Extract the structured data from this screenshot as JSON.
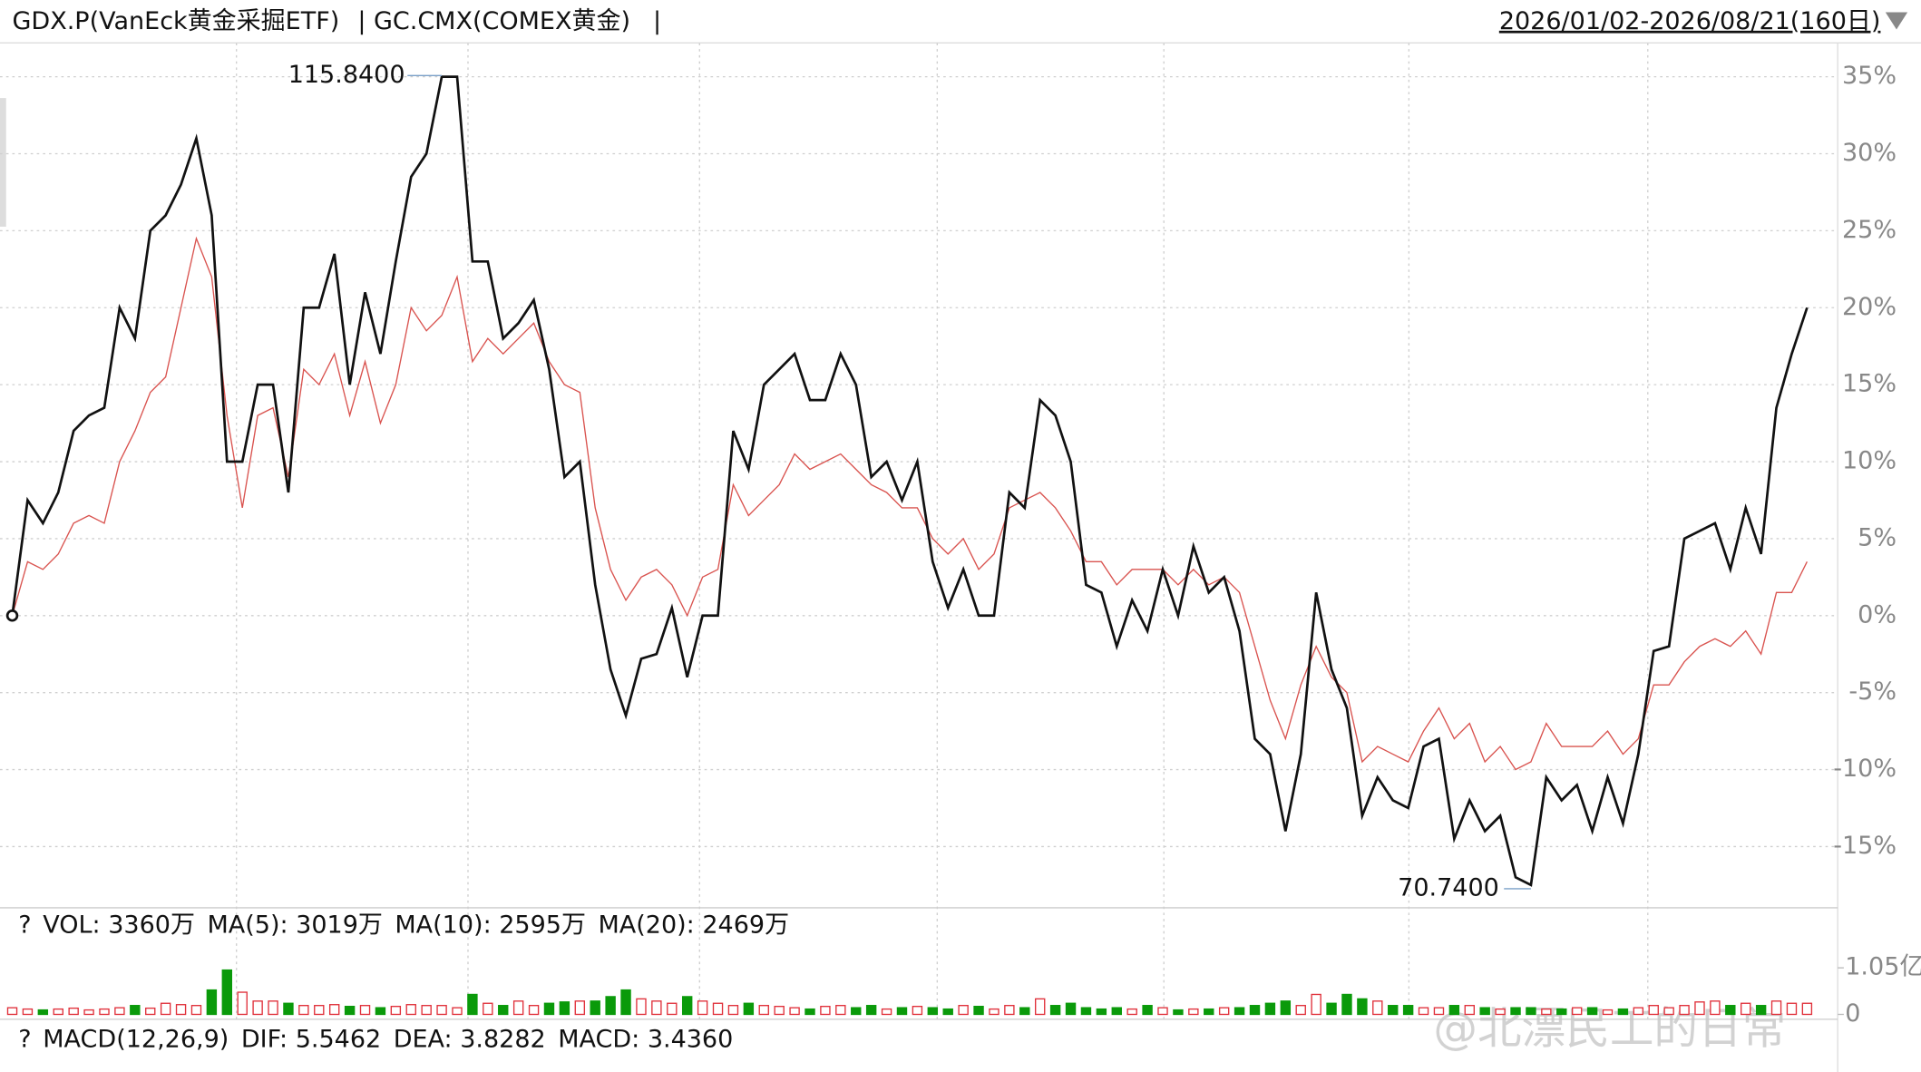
{
  "chart_data": {
    "type": "line",
    "date_range": "2026/01/02-2026/08/21(160日)",
    "separator": "|",
    "series": [
      {
        "name": "GDX.P(VanEck黄金采掘ETF)",
        "color": "#111111",
        "values": [
          0,
          7.5,
          6,
          8,
          12,
          13,
          13.5,
          20,
          18,
          25,
          26,
          28,
          31,
          26,
          10,
          10,
          15,
          15,
          8,
          20,
          20,
          23.5,
          15,
          21,
          17,
          23,
          28.5,
          30,
          35,
          35,
          23,
          23,
          18,
          19,
          20.5,
          16,
          9,
          10,
          2,
          -3.5,
          -6.5,
          -2.8,
          -2.5,
          0.5,
          -4,
          0,
          0,
          12,
          9.5,
          15,
          16,
          17,
          14,
          14,
          17,
          15,
          9,
          10,
          7.5,
          10,
          3.5,
          0.5,
          3,
          0,
          0,
          8,
          7,
          14,
          13,
          10,
          2,
          1.5,
          -2,
          1,
          -1,
          3,
          0,
          4.5,
          1.5,
          2.5,
          -1,
          -8,
          -9,
          -14,
          -9,
          1.5,
          -3.5,
          -6,
          -13,
          -10.5,
          -12,
          -12.5,
          -8.5,
          -8,
          -14.5,
          -12,
          -14,
          -13,
          -17,
          -17.5,
          -10.5,
          -12,
          -11,
          -14,
          -10.5,
          -13.5,
          -9,
          -2.3,
          -2,
          5,
          5.5,
          6,
          3,
          7,
          4,
          13.5,
          17,
          20
        ]
      },
      {
        "name": "GC.CMX(COMEX黄金)",
        "color": "#d9534f",
        "values": [
          0,
          3.5,
          3,
          4,
          6,
          6.5,
          6,
          10,
          12,
          14.5,
          15.5,
          20,
          24.5,
          22,
          13,
          7,
          13,
          13.5,
          9,
          16,
          15,
          17,
          13,
          16.5,
          12.5,
          15,
          20,
          18.5,
          19.5,
          22,
          16.5,
          18,
          17,
          18,
          19,
          16.5,
          15,
          14.5,
          7,
          3,
          1,
          2.5,
          3,
          2,
          0,
          2.5,
          3,
          8.5,
          6.5,
          7.5,
          8.5,
          10.5,
          9.5,
          10,
          10.5,
          9.5,
          8.5,
          8,
          7,
          7,
          5,
          4,
          5,
          3,
          4,
          7,
          7.5,
          8,
          7,
          5.5,
          3.5,
          3.5,
          2,
          3,
          3,
          3,
          2,
          3,
          2,
          2.5,
          1.5,
          -2,
          -5.5,
          -8,
          -4.5,
          -2,
          -4,
          -5,
          -9.5,
          -8.5,
          -9,
          -9.5,
          -7.5,
          -6,
          -8,
          -7,
          -9.5,
          -8.5,
          -10,
          -9.5,
          -7,
          -8.5,
          -8.5,
          -8.5,
          -7.5,
          -9,
          -8,
          -4.5,
          -4.5,
          -3,
          -2,
          -1.5,
          -2,
          -1,
          -2.5,
          1.5,
          1.5,
          3.5
        ]
      }
    ],
    "ylim": [
      -18.9,
      36.8
    ],
    "yticks": [
      {
        "value": 35,
        "label": "35%"
      },
      {
        "value": 30,
        "label": "30%"
      },
      {
        "value": 25,
        "label": "25%"
      },
      {
        "value": 20,
        "label": "20%"
      },
      {
        "value": 15,
        "label": "15%"
      },
      {
        "value": 10,
        "label": "10%"
      },
      {
        "value": 5,
        "label": "5%"
      },
      {
        "value": 0,
        "label": "0%"
      },
      {
        "value": -5,
        "label": "-5%"
      },
      {
        "value": -10,
        "label": "-10%"
      },
      {
        "value": -15,
        "label": "-15%"
      }
    ],
    "grid": true,
    "max_label": "115.8400",
    "max_color": "#c0141c",
    "min_label": "70.7400",
    "min_color": "#1a8a1a",
    "volume": {
      "labels": [
        {
          "text": "VOL: 3360万",
          "color": "#111111"
        },
        {
          "text": "MA(5): 3019万",
          "color": "#111111"
        },
        {
          "text": "MA(10): 2595万",
          "color": "#c0141c"
        },
        {
          "text": "MA(20): 2469万",
          "color": "#1a3fd0"
        }
      ],
      "values": [
        0.15,
        0.12,
        0.1,
        0.12,
        0.14,
        0.1,
        0.12,
        0.15,
        0.2,
        0.14,
        0.25,
        0.22,
        0.2,
        0.55,
        1.0,
        0.5,
        0.3,
        0.3,
        0.25,
        0.2,
        0.2,
        0.22,
        0.18,
        0.2,
        0.15,
        0.18,
        0.22,
        0.2,
        0.2,
        0.15,
        0.45,
        0.25,
        0.2,
        0.3,
        0.2,
        0.25,
        0.28,
        0.3,
        0.3,
        0.4,
        0.55,
        0.35,
        0.3,
        0.25,
        0.4,
        0.3,
        0.25,
        0.2,
        0.25,
        0.2,
        0.18,
        0.15,
        0.12,
        0.18,
        0.2,
        0.15,
        0.2,
        0.12,
        0.15,
        0.18,
        0.15,
        0.12,
        0.2,
        0.18,
        0.12,
        0.2,
        0.15,
        0.35,
        0.2,
        0.25,
        0.15,
        0.12,
        0.15,
        0.12,
        0.2,
        0.15,
        0.1,
        0.12,
        0.12,
        0.15,
        0.15,
        0.2,
        0.25,
        0.3,
        0.2,
        0.45,
        0.25,
        0.45,
        0.35,
        0.3,
        0.2,
        0.2,
        0.15,
        0.15,
        0.2,
        0.2,
        0.15,
        0.12,
        0.15,
        0.15,
        0.12,
        0.12,
        0.15,
        0.15,
        0.1,
        0.12,
        0.15,
        0.2,
        0.15,
        0.2,
        0.28,
        0.3,
        0.2,
        0.25,
        0.2,
        0.3,
        0.25,
        0.25
      ],
      "up_color": "#e0303a",
      "down_color": "#0a9a0a",
      "ylim": [
        0,
        1.05
      ],
      "yticks": [
        {
          "value": 1.05,
          "label": "1.05亿"
        },
        0
      ]
    },
    "macd": {
      "labels": [
        {
          "text": "MACD(12,26,9)",
          "color": "#111111"
        },
        {
          "text": "DIF: 5.5462",
          "color": "#111111"
        },
        {
          "text": "DEA: 3.8282",
          "color": "#c0141c"
        },
        {
          "text": "MACD: 3.4360",
          "color": "#1a9a1a"
        }
      ]
    },
    "help": "?",
    "watermark": "@北漂民工的日常"
  }
}
